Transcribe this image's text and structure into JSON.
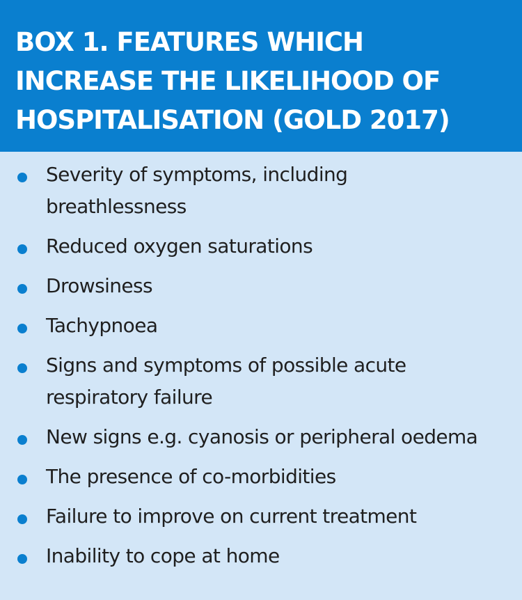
{
  "box": {
    "title_lines": [
      "BOX 1. FEATURES WHICH",
      "INCREASE THE LIKELIHOOD OF",
      "HOSPITALISATION (GOLD 2017)"
    ],
    "items": [
      [
        "Severity of symptoms, including",
        "breathlessness"
      ],
      [
        "Reduced oxygen saturations"
      ],
      [
        "Drowsiness"
      ],
      [
        "Tachypnoea"
      ],
      [
        "Signs and symptoms of possible acute",
        "respiratory failure"
      ],
      [
        "New signs e.g. cyanosis or peripheral oedema"
      ],
      [
        "The presence of co-morbidities"
      ],
      [
        "Failure to improve on current treatment"
      ],
      [
        "Inability to cope at home"
      ]
    ]
  },
  "colors": {
    "header_bg": "#0a7fcf",
    "body_bg": "#d3e6f7",
    "bullet": "#0a7fcf",
    "text": "#1f1f1f",
    "title_text": "#ffffff"
  }
}
